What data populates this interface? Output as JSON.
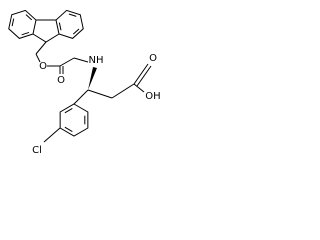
{
  "atoms": {
    "ester_oxygen": "O",
    "carbamate_oxygen": "O",
    "amine": "NH",
    "acid_carbonyl_oxygen": "O",
    "acid_hydroxyl": "OH",
    "chlorine": "Cl"
  }
}
